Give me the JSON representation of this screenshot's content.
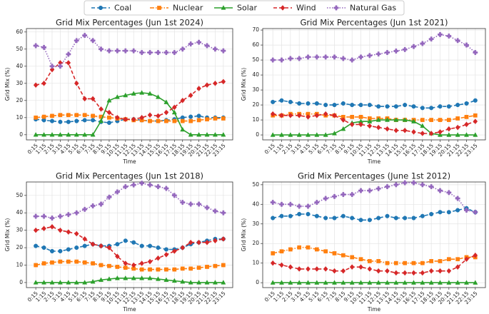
{
  "chart_data": [
    {
      "type": "line",
      "title": "Grid Mix Percentages (Jun 1st 2024)",
      "xlabel": "Time",
      "ylabel": "Grid Mix (%)",
      "categories": [
        "0:15",
        "1:15",
        "2:15",
        "3:15",
        "4:15",
        "5:15",
        "6:15",
        "7:15",
        "8:15",
        "9:15",
        "10:15",
        "11:15",
        "12:15",
        "13:15",
        "14:15",
        "15:15",
        "16:15",
        "17:15",
        "18:15",
        "19:15",
        "20:15",
        "21:15",
        "22:15",
        "23:15"
      ],
      "ylim": [
        -3,
        62
      ],
      "yticks": [
        0,
        10,
        20,
        30,
        40,
        50,
        60
      ],
      "grid": true,
      "series": [
        {
          "name": "Coal",
          "color": "#1f77b4",
          "linestyle": "dashed",
          "marker": "circle",
          "values": [
            9,
            8.5,
            8,
            7.5,
            7.5,
            8,
            8.5,
            8.5,
            7.5,
            7,
            8,
            9,
            9,
            8.5,
            8,
            8,
            8.5,
            9,
            10,
            10.5,
            11,
            10,
            10,
            10
          ]
        },
        {
          "name": "Nuclear",
          "color": "#ff7f0e",
          "linestyle": "dashdot",
          "marker": "square",
          "values": [
            10,
            10.5,
            11,
            11.5,
            11.5,
            11.5,
            11.5,
            11,
            10.5,
            10,
            9.5,
            9,
            8.5,
            8.5,
            8,
            8,
            8,
            8,
            8,
            8,
            8.5,
            9,
            9.5,
            9.5
          ]
        },
        {
          "name": "Solar",
          "color": "#2ca02c",
          "linestyle": "solid",
          "marker": "triangle",
          "values": [
            0,
            0,
            0,
            0,
            0,
            0,
            0,
            0,
            8,
            20,
            22,
            23,
            24,
            24.5,
            24,
            22,
            19,
            13,
            3,
            0,
            0,
            0,
            0,
            0
          ]
        },
        {
          "name": "Wind",
          "color": "#d62728",
          "linestyle": "dashed",
          "marker": "diamond",
          "values": [
            29,
            30,
            38,
            42,
            42,
            30,
            21,
            21,
            15,
            13,
            10,
            9,
            9,
            10,
            11.5,
            11,
            13,
            16,
            20,
            23,
            27,
            29,
            30,
            31
          ]
        },
        {
          "name": "Natural Gas",
          "color": "#9467bd",
          "linestyle": "dotted",
          "marker": "plus",
          "values": [
            52,
            51,
            40,
            40,
            47,
            55,
            58,
            55,
            50,
            49,
            49,
            49,
            49,
            48,
            48,
            48,
            48,
            48,
            50,
            53,
            54,
            52,
            50,
            49
          ]
        }
      ]
    },
    {
      "type": "line",
      "title": "Grid Mix Percentages (Jun 1st 2021)",
      "xlabel": "Time",
      "ylabel": "Grid Mix (%)",
      "categories": [
        "0:15",
        "1:15",
        "2:15",
        "3:15",
        "4:15",
        "5:15",
        "6:15",
        "7:15",
        "8:15",
        "9:15",
        "10:15",
        "11:15",
        "12:15",
        "13:15",
        "14:15",
        "15:15",
        "16:15",
        "17:15",
        "18:15",
        "19:15",
        "20:15",
        "21:15",
        "22:15",
        "23:15"
      ],
      "ylim": [
        -3.3,
        71
      ],
      "yticks": [
        0,
        10,
        20,
        30,
        40,
        50,
        60,
        70
      ],
      "grid": true,
      "series": [
        {
          "name": "Coal",
          "color": "#1f77b4",
          "linestyle": "dashed",
          "marker": "circle",
          "values": [
            22,
            23,
            22,
            21,
            21,
            21,
            20,
            20,
            21,
            20,
            20,
            20,
            19,
            19,
            19,
            20,
            19,
            18,
            18,
            19,
            19,
            20,
            21,
            23
          ]
        },
        {
          "name": "Nuclear",
          "color": "#ff7f0e",
          "linestyle": "dashdot",
          "marker": "square",
          "values": [
            13,
            13,
            14,
            14,
            14,
            14,
            13,
            13,
            12,
            12,
            12,
            11,
            11,
            11,
            10,
            10,
            10,
            10,
            10,
            10,
            10,
            11,
            12,
            13
          ]
        },
        {
          "name": "Solar",
          "color": "#2ca02c",
          "linestyle": "solid",
          "marker": "triangle",
          "values": [
            0,
            0,
            0,
            0,
            0,
            0,
            0,
            1,
            4,
            8,
            9,
            9,
            10,
            10,
            10,
            10,
            9,
            6,
            1,
            0,
            0,
            0,
            0,
            0
          ]
        },
        {
          "name": "Wind",
          "color": "#d62728",
          "linestyle": "dashed",
          "marker": "diamond",
          "values": [
            14,
            13,
            13,
            13,
            12,
            13,
            14,
            13,
            10,
            7,
            7,
            6,
            5,
            4,
            3,
            3,
            2,
            1,
            1,
            2,
            4,
            5,
            7,
            9
          ]
        },
        {
          "name": "Natural Gas",
          "color": "#9467bd",
          "linestyle": "dotted",
          "marker": "plus",
          "values": [
            50,
            50,
            51,
            51,
            52,
            52,
            52,
            52,
            51,
            50,
            52,
            53,
            54,
            55,
            56,
            57,
            59,
            61,
            64,
            67,
            66,
            63,
            60,
            55
          ]
        }
      ]
    },
    {
      "type": "line",
      "title": "Grid Mix Percentages (Jun 1st 2018)",
      "xlabel": "Time",
      "ylabel": "Grid Mix (%)",
      "categories": [
        "0:15",
        "1:15",
        "2:15",
        "3:15",
        "4:15",
        "5:15",
        "6:15",
        "7:15",
        "8:15",
        "9:15",
        "10:15",
        "11:15",
        "12:15",
        "13:15",
        "14:15",
        "15:15",
        "16:15",
        "17:15",
        "18:15",
        "19:15",
        "20:15",
        "21:15",
        "22:15",
        "23:15"
      ],
      "ylim": [
        -2.9,
        57.7
      ],
      "yticks": [
        0,
        10,
        20,
        30,
        40,
        50
      ],
      "grid": true,
      "series": [
        {
          "name": "Coal",
          "color": "#1f77b4",
          "linestyle": "dashed",
          "marker": "circle",
          "values": [
            21,
            20,
            18,
            18,
            19,
            20,
            21,
            22,
            21,
            21,
            22,
            24,
            23,
            21,
            21,
            20,
            19,
            19,
            20,
            22,
            23,
            24,
            25,
            25
          ]
        },
        {
          "name": "Nuclear",
          "color": "#ff7f0e",
          "linestyle": "dashdot",
          "marker": "square",
          "values": [
            10,
            11,
            11.5,
            12,
            12,
            12,
            11.5,
            11,
            10,
            9.5,
            9,
            8.5,
            8,
            7.5,
            7.5,
            7.5,
            7.5,
            7.5,
            8,
            8,
            8.5,
            9,
            9.5,
            10
          ]
        },
        {
          "name": "Solar",
          "color": "#2ca02c",
          "linestyle": "solid",
          "marker": "triangle",
          "values": [
            0,
            0,
            0,
            0,
            0,
            0,
            0,
            0.5,
            1.5,
            2,
            2.5,
            2.5,
            2.5,
            2.5,
            2.5,
            2,
            1.5,
            1,
            0.5,
            0,
            0,
            0,
            0,
            0
          ]
        },
        {
          "name": "Wind",
          "color": "#d62728",
          "linestyle": "dashed",
          "marker": "diamond",
          "values": [
            30,
            31,
            32,
            30,
            29,
            28,
            25,
            22,
            21,
            20,
            15,
            11,
            10,
            11,
            12,
            14,
            16,
            18,
            20,
            23,
            23,
            23,
            24,
            25
          ]
        },
        {
          "name": "Natural Gas",
          "color": "#9467bd",
          "linestyle": "dotted",
          "marker": "plus",
          "values": [
            38,
            38,
            37,
            38,
            39,
            40,
            42,
            44,
            45,
            49,
            52,
            55,
            56,
            57,
            56,
            55,
            54,
            50,
            46,
            45,
            45,
            43,
            41,
            40
          ]
        }
      ]
    },
    {
      "type": "line",
      "title": "Grid Mix Percentages (June 1st 2012)",
      "xlabel": "Time",
      "ylabel": "Grid Mix (%)",
      "categories": [
        "0:15",
        "1:15",
        "2:15",
        "3:15",
        "4:15",
        "5:15",
        "6:15",
        "7:15",
        "8:15",
        "9:15",
        "10:15",
        "11:15",
        "12:15",
        "13:15",
        "14:15",
        "15:15",
        "16:15",
        "17:15",
        "18:15",
        "19:15",
        "20:15",
        "21:15",
        "22:15",
        "23:15"
      ],
      "ylim": [
        -2.5,
        51.4
      ],
      "yticks": [
        0,
        10,
        20,
        30,
        40,
        50
      ],
      "grid": true,
      "series": [
        {
          "name": "Coal",
          "color": "#1f77b4",
          "linestyle": "dashed",
          "marker": "circle",
          "values": [
            33,
            34,
            34,
            35,
            35,
            34,
            33,
            33,
            34,
            33,
            32,
            32,
            33,
            34,
            33,
            33,
            33,
            34,
            35,
            36,
            36,
            37,
            38,
            36
          ]
        },
        {
          "name": "Nuclear",
          "color": "#ff7f0e",
          "linestyle": "dashdot",
          "marker": "square",
          "values": [
            15,
            16,
            17,
            18,
            18,
            17,
            16,
            15,
            14,
            13,
            12,
            11,
            11,
            10,
            10,
            10,
            10,
            10,
            11,
            11,
            12,
            12,
            13,
            13
          ]
        },
        {
          "name": "Solar",
          "color": "#2ca02c",
          "linestyle": "solid",
          "marker": "triangle",
          "values": [
            0,
            0,
            0,
            0,
            0,
            0,
            0,
            0,
            0,
            0,
            0,
            0,
            0,
            0,
            0,
            0,
            0,
            0,
            0,
            0,
            0,
            0,
            0,
            0
          ]
        },
        {
          "name": "Wind",
          "color": "#d62728",
          "linestyle": "dashed",
          "marker": "diamond",
          "values": [
            10,
            9,
            8,
            7,
            7,
            7,
            7,
            6,
            6,
            8,
            8,
            7,
            6,
            6,
            5,
            5,
            5,
            5,
            6,
            6,
            6,
            8,
            12,
            14
          ]
        },
        {
          "name": "Natural Gas",
          "color": "#9467bd",
          "linestyle": "dotted",
          "marker": "plus",
          "values": [
            41,
            40,
            40,
            39,
            39,
            41,
            43,
            44,
            45,
            45,
            47,
            47,
            48,
            49,
            50,
            51,
            51,
            50,
            49,
            47,
            46,
            43,
            37,
            36
          ]
        }
      ]
    }
  ]
}
